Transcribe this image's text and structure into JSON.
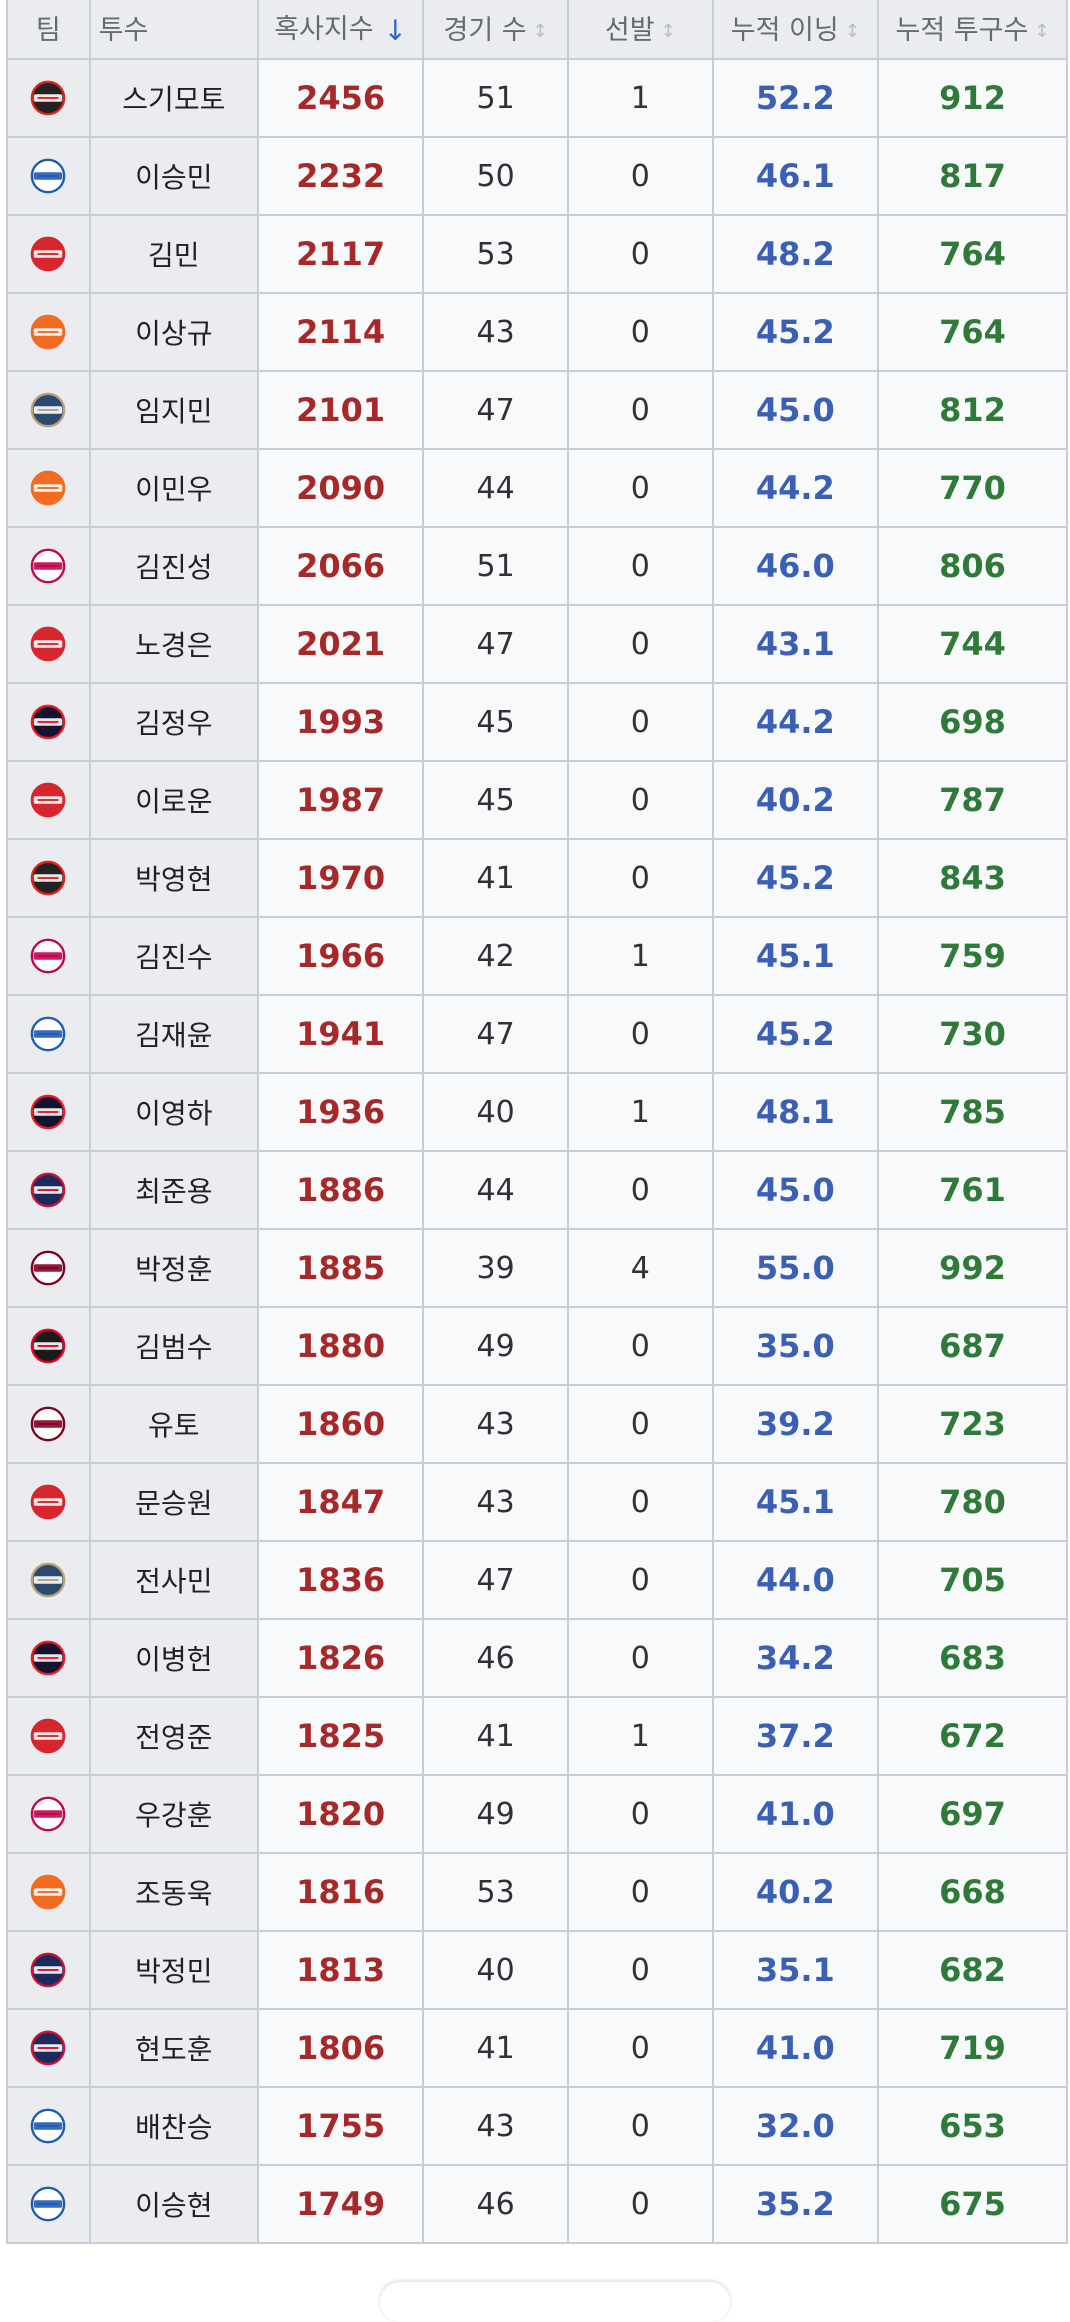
{
  "columns": {
    "team": "팀",
    "pitcher": "투수",
    "xsi": "혹사지수",
    "games": "경기 수",
    "starts": "선발",
    "innings": "누적 이닝",
    "pitches": "누적 투구수"
  },
  "sort": {
    "active_arrow": "↓",
    "inactive_arrow": "↕"
  },
  "team_styles": {
    "KT": {
      "icon": "kt-wiz-logo-icon",
      "bg": "#222222",
      "fg": "#ffffff",
      "accent": "#e2231a"
    },
    "Samsung": {
      "icon": "samsung-lions-logo-icon",
      "bg": "#ffffff",
      "fg": "#1f5ab5",
      "accent": "#1f5ab5"
    },
    "SSG": {
      "icon": "ssg-landers-logo-icon",
      "bg": "#d8262e",
      "fg": "#ffffff",
      "accent": "#d8262e"
    },
    "Hanwha": {
      "icon": "hanwha-eagles-logo-icon",
      "bg": "#f26b21",
      "fg": "#ffffff",
      "accent": "#f26b21"
    },
    "NC": {
      "icon": "nc-dinos-logo-icon",
      "bg": "#2b4a6f",
      "fg": "#ffffff",
      "accent": "#b8a27a"
    },
    "LG": {
      "icon": "lg-twins-logo-icon",
      "bg": "#ffffff",
      "fg": "#c30452",
      "accent": "#c30452"
    },
    "Doosan": {
      "icon": "doosan-bears-logo-icon",
      "bg": "#131230",
      "fg": "#ffffff",
      "accent": "#ed1c24"
    },
    "Lotte": {
      "icon": "lotte-giants-logo-icon",
      "bg": "#1b2a5c",
      "fg": "#ffffff",
      "accent": "#d00f31"
    },
    "Kiwoom": {
      "icon": "kiwoom-heroes-logo-icon",
      "bg": "#ffffff",
      "fg": "#820024",
      "accent": "#820024"
    },
    "KIA": {
      "icon": "kia-tigers-logo-icon",
      "bg": "#1a1a1a",
      "fg": "#ffffff",
      "accent": "#ea0029"
    }
  },
  "rows": [
    {
      "team": "KT",
      "name": "스기모토",
      "xsi": "2456",
      "games": "51",
      "starts": "1",
      "innings": "52.2",
      "pitches": "912"
    },
    {
      "team": "Samsung",
      "name": "이승민",
      "xsi": "2232",
      "games": "50",
      "starts": "0",
      "innings": "46.1",
      "pitches": "817"
    },
    {
      "team": "SSG",
      "name": "김민",
      "xsi": "2117",
      "games": "53",
      "starts": "0",
      "innings": "48.2",
      "pitches": "764"
    },
    {
      "team": "Hanwha",
      "name": "이상규",
      "xsi": "2114",
      "games": "43",
      "starts": "0",
      "innings": "45.2",
      "pitches": "764"
    },
    {
      "team": "NC",
      "name": "임지민",
      "xsi": "2101",
      "games": "47",
      "starts": "0",
      "innings": "45.0",
      "pitches": "812"
    },
    {
      "team": "Hanwha",
      "name": "이민우",
      "xsi": "2090",
      "games": "44",
      "starts": "0",
      "innings": "44.2",
      "pitches": "770"
    },
    {
      "team": "LG",
      "name": "김진성",
      "xsi": "2066",
      "games": "51",
      "starts": "0",
      "innings": "46.0",
      "pitches": "806"
    },
    {
      "team": "SSG",
      "name": "노경은",
      "xsi": "2021",
      "games": "47",
      "starts": "0",
      "innings": "43.1",
      "pitches": "744"
    },
    {
      "team": "Doosan",
      "name": "김정우",
      "xsi": "1993",
      "games": "45",
      "starts": "0",
      "innings": "44.2",
      "pitches": "698"
    },
    {
      "team": "SSG",
      "name": "이로운",
      "xsi": "1987",
      "games": "45",
      "starts": "0",
      "innings": "40.2",
      "pitches": "787"
    },
    {
      "team": "KT",
      "name": "박영현",
      "xsi": "1970",
      "games": "41",
      "starts": "0",
      "innings": "45.2",
      "pitches": "843"
    },
    {
      "team": "LG",
      "name": "김진수",
      "xsi": "1966",
      "games": "42",
      "starts": "1",
      "innings": "45.1",
      "pitches": "759"
    },
    {
      "team": "Samsung",
      "name": "김재윤",
      "xsi": "1941",
      "games": "47",
      "starts": "0",
      "innings": "45.2",
      "pitches": "730"
    },
    {
      "team": "Doosan",
      "name": "이영하",
      "xsi": "1936",
      "games": "40",
      "starts": "1",
      "innings": "48.1",
      "pitches": "785"
    },
    {
      "team": "Lotte",
      "name": "최준용",
      "xsi": "1886",
      "games": "44",
      "starts": "0",
      "innings": "45.0",
      "pitches": "761"
    },
    {
      "team": "Kiwoom",
      "name": "박정훈",
      "xsi": "1885",
      "games": "39",
      "starts": "4",
      "innings": "55.0",
      "pitches": "992"
    },
    {
      "team": "KIA",
      "name": "김범수",
      "xsi": "1880",
      "games": "49",
      "starts": "0",
      "innings": "35.0",
      "pitches": "687"
    },
    {
      "team": "Kiwoom",
      "name": "유토",
      "xsi": "1860",
      "games": "43",
      "starts": "0",
      "innings": "39.2",
      "pitches": "723"
    },
    {
      "team": "SSG",
      "name": "문승원",
      "xsi": "1847",
      "games": "43",
      "starts": "0",
      "innings": "45.1",
      "pitches": "780"
    },
    {
      "team": "NC",
      "name": "전사민",
      "xsi": "1836",
      "games": "47",
      "starts": "0",
      "innings": "44.0",
      "pitches": "705"
    },
    {
      "team": "Doosan",
      "name": "이병헌",
      "xsi": "1826",
      "games": "46",
      "starts": "0",
      "innings": "34.2",
      "pitches": "683"
    },
    {
      "team": "SSG",
      "name": "전영준",
      "xsi": "1825",
      "games": "41",
      "starts": "1",
      "innings": "37.2",
      "pitches": "672"
    },
    {
      "team": "LG",
      "name": "우강훈",
      "xsi": "1820",
      "games": "49",
      "starts": "0",
      "innings": "41.0",
      "pitches": "697"
    },
    {
      "team": "Hanwha",
      "name": "조동욱",
      "xsi": "1816",
      "games": "53",
      "starts": "0",
      "innings": "40.2",
      "pitches": "668"
    },
    {
      "team": "Lotte",
      "name": "박정민",
      "xsi": "1813",
      "games": "40",
      "starts": "0",
      "innings": "35.1",
      "pitches": "682"
    },
    {
      "team": "Lotte",
      "name": "현도훈",
      "xsi": "1806",
      "games": "41",
      "starts": "0",
      "innings": "41.0",
      "pitches": "719"
    },
    {
      "team": "Samsung",
      "name": "배찬승",
      "xsi": "1755",
      "games": "43",
      "starts": "0",
      "innings": "32.0",
      "pitches": "653"
    },
    {
      "team": "Samsung",
      "name": "이승현",
      "xsi": "1749",
      "games": "46",
      "starts": "0",
      "innings": "35.2",
      "pitches": "675"
    }
  ]
}
